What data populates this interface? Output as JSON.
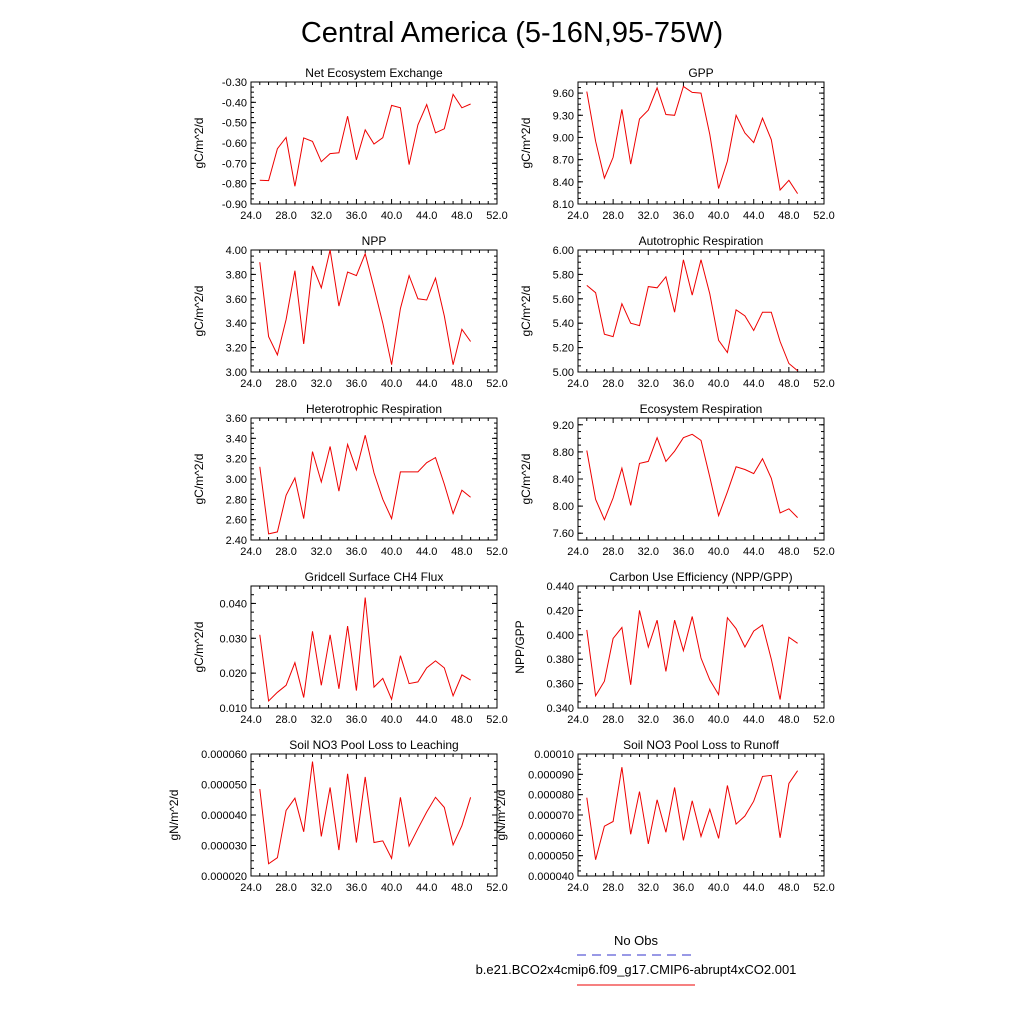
{
  "figure_title": "Central America (5-16N,95-75W)",
  "legend": {
    "obs_label": "No Obs",
    "obs_color": "#3333cc",
    "model_label": "b.e21.BCO2x4cmip6.f09_g17.CMIP6-abrupt4xCO2.001",
    "model_color": "#ee0000"
  },
  "chart_data": [
    {
      "type": "line",
      "title": "Net Ecosystem Exchange",
      "ylabel": "gC/m^2/d",
      "xlim": [
        24,
        52
      ],
      "xticks": [
        "24.0",
        "28.0",
        "32.0",
        "36.0",
        "40.0",
        "44.0",
        "48.0",
        "52.0"
      ],
      "ylim": [
        -0.9,
        -0.3
      ],
      "yticks": [
        "-0.90",
        "-0.80",
        "-0.70",
        "-0.60",
        "-0.50",
        "-0.40",
        "-0.30"
      ],
      "x": [
        25,
        26,
        27,
        28,
        29,
        30,
        31,
        32,
        33,
        34,
        35,
        36,
        37,
        38,
        39,
        40,
        41,
        42,
        43,
        44,
        45,
        46,
        47,
        48,
        49
      ],
      "series": [
        {
          "values": [
            -0.783,
            -0.785,
            -0.628,
            -0.573,
            -0.813,
            -0.575,
            -0.592,
            -0.692,
            -0.652,
            -0.648,
            -0.468,
            -0.683,
            -0.535,
            -0.605,
            -0.574,
            -0.415,
            -0.427,
            -0.706,
            -0.511,
            -0.411,
            -0.55,
            -0.53,
            -0.361,
            -0.427,
            -0.408
          ]
        }
      ]
    },
    {
      "type": "line",
      "title": "GPP",
      "ylabel": "gC/m^2/d",
      "xlim": [
        24,
        52
      ],
      "xticks": [
        "24.0",
        "28.0",
        "32.0",
        "36.0",
        "40.0",
        "44.0",
        "48.0",
        "52.0"
      ],
      "ylim": [
        8.1,
        9.75
      ],
      "yticks": [
        "8.10",
        "8.40",
        "8.70",
        "9.00",
        "9.30",
        "9.60"
      ],
      "x": [
        25,
        26,
        27,
        28,
        29,
        30,
        31,
        32,
        33,
        34,
        35,
        36,
        37,
        38,
        39,
        40,
        41,
        42,
        43,
        44,
        45,
        46,
        47,
        48,
        49
      ],
      "series": [
        {
          "values": [
            9.62,
            8.95,
            8.45,
            8.73,
            9.38,
            8.64,
            9.25,
            9.37,
            9.67,
            9.31,
            9.3,
            9.69,
            9.61,
            9.6,
            9.04,
            8.31,
            8.68,
            9.3,
            9.06,
            8.93,
            9.26,
            8.97,
            8.29,
            8.42,
            8.24
          ]
        }
      ]
    },
    {
      "type": "line",
      "title": "NPP",
      "ylabel": "gC/m^2/d",
      "xlim": [
        24,
        52
      ],
      "xticks": [
        "24.0",
        "28.0",
        "32.0",
        "36.0",
        "40.0",
        "44.0",
        "48.0",
        "52.0"
      ],
      "ylim": [
        3.0,
        4.0
      ],
      "yticks": [
        "3.00",
        "3.20",
        "3.40",
        "3.60",
        "3.80",
        "4.00"
      ],
      "x": [
        25,
        26,
        27,
        28,
        29,
        30,
        31,
        32,
        33,
        34,
        35,
        36,
        37,
        38,
        39,
        40,
        41,
        42,
        43,
        44,
        45,
        46,
        47,
        48,
        49
      ],
      "series": [
        {
          "values": [
            3.9,
            3.29,
            3.14,
            3.43,
            3.83,
            3.23,
            3.87,
            3.69,
            4.0,
            3.54,
            3.82,
            3.79,
            3.97,
            3.69,
            3.4,
            3.06,
            3.52,
            3.79,
            3.6,
            3.59,
            3.77,
            3.46,
            3.06,
            3.35,
            3.25
          ]
        }
      ]
    },
    {
      "type": "line",
      "title": "Autotrophic Respiration",
      "ylabel": "gC/m^2/d",
      "xlim": [
        24,
        52
      ],
      "xticks": [
        "24.0",
        "28.0",
        "32.0",
        "36.0",
        "40.0",
        "44.0",
        "48.0",
        "52.0"
      ],
      "ylim": [
        5.0,
        6.0
      ],
      "yticks": [
        "5.00",
        "5.20",
        "5.40",
        "5.60",
        "5.80",
        "6.00"
      ],
      "x": [
        25,
        26,
        27,
        28,
        29,
        30,
        31,
        32,
        33,
        34,
        35,
        36,
        37,
        38,
        39,
        40,
        41,
        42,
        43,
        44,
        45,
        46,
        47,
        48,
        49
      ],
      "series": [
        {
          "values": [
            5.71,
            5.65,
            5.31,
            5.29,
            5.56,
            5.4,
            5.38,
            5.7,
            5.69,
            5.78,
            5.49,
            5.92,
            5.63,
            5.92,
            5.64,
            5.26,
            5.16,
            5.51,
            5.46,
            5.34,
            5.49,
            5.49,
            5.25,
            5.07,
            5.01
          ]
        }
      ]
    },
    {
      "type": "line",
      "title": "Heterotrophic Respiration",
      "ylabel": "gC/m^2/d",
      "xlim": [
        24,
        52
      ],
      "xticks": [
        "24.0",
        "28.0",
        "32.0",
        "36.0",
        "40.0",
        "44.0",
        "48.0",
        "52.0"
      ],
      "ylim": [
        2.4,
        3.6
      ],
      "yticks": [
        "2.40",
        "2.60",
        "2.80",
        "3.00",
        "3.20",
        "3.40",
        "3.60"
      ],
      "x": [
        25,
        26,
        27,
        28,
        29,
        30,
        31,
        32,
        33,
        34,
        35,
        36,
        37,
        38,
        39,
        40,
        41,
        42,
        43,
        44,
        45,
        46,
        47,
        48,
        49
      ],
      "series": [
        {
          "values": [
            3.12,
            2.46,
            2.48,
            2.84,
            3.01,
            2.61,
            3.27,
            2.97,
            3.32,
            2.88,
            3.34,
            3.09,
            3.43,
            3.06,
            2.8,
            2.61,
            3.07,
            3.07,
            3.07,
            3.16,
            3.21,
            2.95,
            2.66,
            2.89,
            2.82
          ]
        }
      ]
    },
    {
      "type": "line",
      "title": "Ecosystem Respiration",
      "ylabel": "gC/m^2/d",
      "xlim": [
        24,
        52
      ],
      "xticks": [
        "24.0",
        "28.0",
        "32.0",
        "36.0",
        "40.0",
        "44.0",
        "48.0",
        "52.0"
      ],
      "ylim": [
        7.5,
        9.3
      ],
      "yticks": [
        "7.60",
        "8.00",
        "8.40",
        "8.80",
        "9.20"
      ],
      "x": [
        25,
        26,
        27,
        28,
        29,
        30,
        31,
        32,
        33,
        34,
        35,
        36,
        37,
        38,
        39,
        40,
        41,
        42,
        43,
        44,
        45,
        46,
        47,
        48,
        49
      ],
      "series": [
        {
          "values": [
            8.82,
            8.1,
            7.8,
            8.12,
            8.56,
            8.01,
            8.63,
            8.66,
            9.01,
            8.66,
            8.81,
            9.01,
            9.06,
            8.97,
            8.43,
            7.86,
            8.21,
            8.58,
            8.54,
            8.48,
            8.7,
            8.41,
            7.9,
            7.96,
            7.83
          ]
        }
      ]
    },
    {
      "type": "line",
      "title": "Gridcell Surface CH4 Flux",
      "ylabel": "gC/m^2/d",
      "xlim": [
        24,
        52
      ],
      "xticks": [
        "24.0",
        "28.0",
        "32.0",
        "36.0",
        "40.0",
        "44.0",
        "48.0",
        "52.0"
      ],
      "ylim": [
        0.01,
        0.045
      ],
      "yticks": [
        "0.010",
        "0.020",
        "0.030",
        "0.040"
      ],
      "x": [
        25,
        26,
        27,
        28,
        29,
        30,
        31,
        32,
        33,
        34,
        35,
        36,
        37,
        38,
        39,
        40,
        41,
        42,
        43,
        44,
        45,
        46,
        47,
        48,
        49
      ],
      "series": [
        {
          "values": [
            0.031,
            0.012,
            0.0145,
            0.0165,
            0.023,
            0.013,
            0.032,
            0.0165,
            0.031,
            0.0155,
            0.0335,
            0.015,
            0.0417,
            0.016,
            0.0185,
            0.0125,
            0.025,
            0.017,
            0.0175,
            0.0215,
            0.0235,
            0.0215,
            0.0135,
            0.0195,
            0.018
          ]
        }
      ]
    },
    {
      "type": "line",
      "title": "Carbon Use Efficiency (NPP/GPP)",
      "ylabel": "NPP/GPP",
      "xlim": [
        24,
        52
      ],
      "xticks": [
        "24.0",
        "28.0",
        "32.0",
        "36.0",
        "40.0",
        "44.0",
        "48.0",
        "52.0"
      ],
      "ylim": [
        0.34,
        0.44
      ],
      "yticks": [
        "0.340",
        "0.360",
        "0.380",
        "0.400",
        "0.420",
        "0.440"
      ],
      "x": [
        25,
        26,
        27,
        28,
        29,
        30,
        31,
        32,
        33,
        34,
        35,
        36,
        37,
        38,
        39,
        40,
        41,
        42,
        43,
        44,
        45,
        46,
        47,
        48,
        49
      ],
      "series": [
        {
          "values": [
            0.404,
            0.35,
            0.362,
            0.397,
            0.406,
            0.359,
            0.42,
            0.39,
            0.412,
            0.37,
            0.412,
            0.387,
            0.415,
            0.381,
            0.363,
            0.351,
            0.414,
            0.405,
            0.39,
            0.403,
            0.408,
            0.38,
            0.347,
            0.398,
            0.393
          ]
        }
      ]
    },
    {
      "type": "line",
      "title": "Soil NO3 Pool Loss to Leaching",
      "ylabel": "gN/m^2/d",
      "xlim": [
        24,
        52
      ],
      "xticks": [
        "24.0",
        "28.0",
        "32.0",
        "36.0",
        "40.0",
        "44.0",
        "48.0",
        "52.0"
      ],
      "ylim": [
        2e-05,
        6e-05
      ],
      "yticks": [
        "0.000020",
        "0.000030",
        "0.000040",
        "0.000050",
        "0.000060"
      ],
      "x": [
        25,
        26,
        27,
        28,
        29,
        30,
        31,
        32,
        33,
        34,
        35,
        36,
        37,
        38,
        39,
        40,
        41,
        42,
        43,
        44,
        45,
        46,
        47,
        48,
        49
      ],
      "series": [
        {
          "values": [
            4.85e-05,
            2.4e-05,
            2.6e-05,
            4.15e-05,
            4.55e-05,
            3.45e-05,
            5.75e-05,
            3.3e-05,
            4.9e-05,
            2.85e-05,
            5.35e-05,
            3.1e-05,
            5.25e-05,
            3.1e-05,
            3.15e-05,
            2.58e-05,
            4.58e-05,
            2.98e-05,
            3.55e-05,
            4.1e-05,
            4.58e-05,
            4.25e-05,
            3.02e-05,
            3.65e-05,
            4.58e-05
          ]
        }
      ]
    },
    {
      "type": "line",
      "title": "Soil NO3 Pool Loss to Runoff",
      "ylabel": "gN/m^2/d",
      "xlim": [
        24,
        52
      ],
      "xticks": [
        "24.0",
        "28.0",
        "32.0",
        "36.0",
        "40.0",
        "44.0",
        "48.0",
        "52.0"
      ],
      "ylim": [
        4e-05,
        0.0001
      ],
      "yticks": [
        "0.000040",
        "0.000050",
        "0.000060",
        "0.000070",
        "0.000080",
        "0.000090",
        "0.00010"
      ],
      "x": [
        25,
        26,
        27,
        28,
        29,
        30,
        31,
        32,
        33,
        34,
        35,
        36,
        37,
        38,
        39,
        40,
        41,
        42,
        43,
        44,
        45,
        46,
        47,
        48,
        49
      ],
      "series": [
        {
          "values": [
            7.85e-05,
            4.8e-05,
            6.45e-05,
            6.68e-05,
            9.35e-05,
            6.05e-05,
            8.15e-05,
            5.58e-05,
            7.75e-05,
            6.15e-05,
            8.35e-05,
            5.75e-05,
            7.7e-05,
            5.95e-05,
            7.28e-05,
            5.85e-05,
            8.45e-05,
            6.55e-05,
            6.95e-05,
            7.68e-05,
            8.9e-05,
            8.95e-05,
            5.88e-05,
            8.55e-05,
            9.18e-05
          ]
        }
      ]
    }
  ]
}
